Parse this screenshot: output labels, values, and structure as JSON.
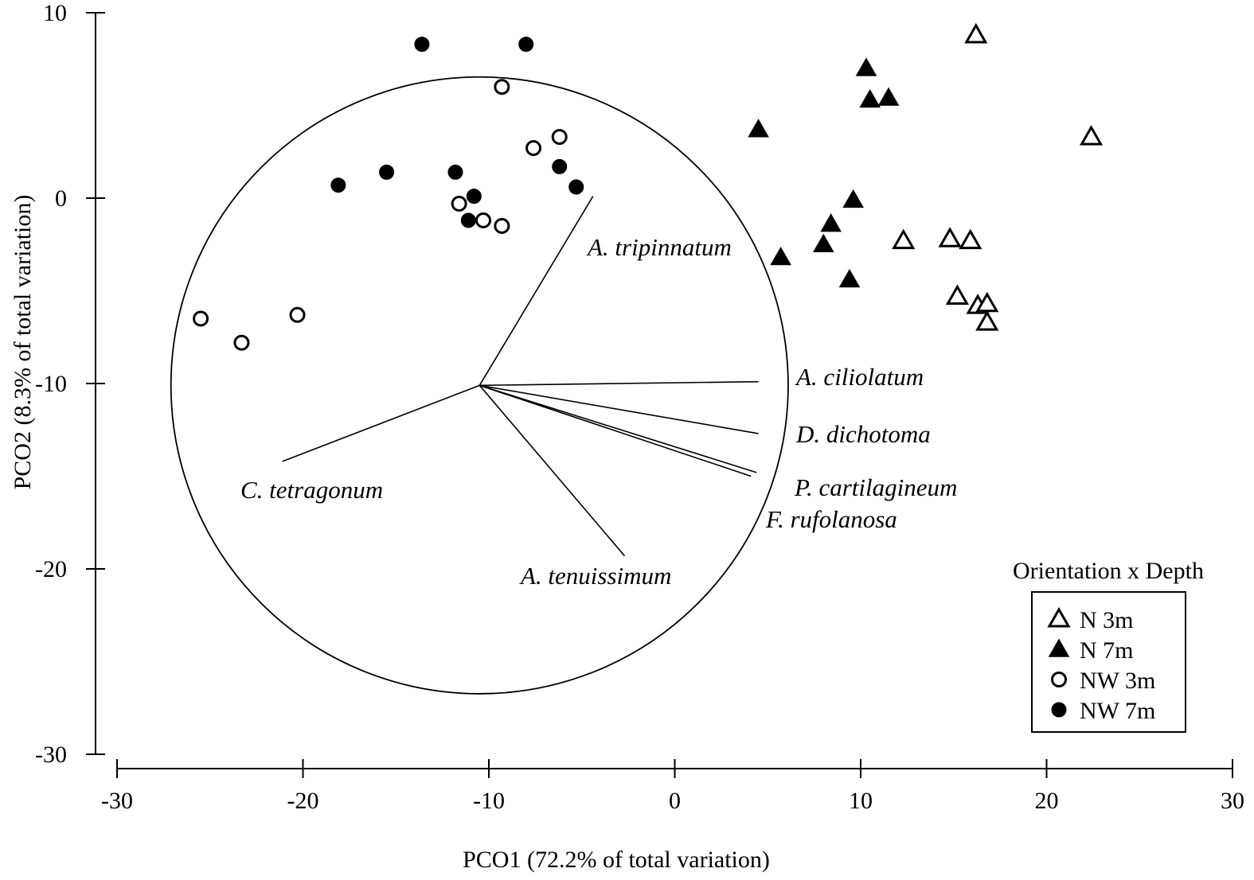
{
  "chart_data": {
    "type": "scatter",
    "xlabel": "PCO1 (72.2% of total variation)",
    "ylabel": "PCO2 (8.3% of total variation)",
    "xlim": [
      -30,
      30
    ],
    "ylim": [
      -30,
      10
    ],
    "xticks": [
      -30,
      -20,
      -10,
      0,
      10,
      20,
      30
    ],
    "yticks": [
      10,
      0,
      -10,
      -20,
      -30
    ],
    "xtick_labels": [
      "-30",
      "-20",
      "-10",
      "0",
      "10",
      "20",
      "30"
    ],
    "ytick_labels": [
      "10",
      "0",
      "-10",
      "-20",
      "-30"
    ],
    "grid": false,
    "legend": {
      "title": "Orientation x Depth",
      "position": "bottom-right"
    },
    "series": [
      {
        "name": "N 3m",
        "marker": "triangle-open",
        "points": [
          [
            16.2,
            8.8
          ],
          [
            22.4,
            3.3
          ],
          [
            12.3,
            -2.3
          ],
          [
            14.8,
            -2.2
          ],
          [
            15.9,
            -2.3
          ],
          [
            15.2,
            -5.3
          ],
          [
            16.3,
            -5.8
          ],
          [
            16.8,
            -5.7
          ],
          [
            16.8,
            -6.7
          ]
        ]
      },
      {
        "name": "N 7m",
        "marker": "triangle-filled",
        "points": [
          [
            10.3,
            7.0
          ],
          [
            10.5,
            5.3
          ],
          [
            11.5,
            5.4
          ],
          [
            4.5,
            3.7
          ],
          [
            9.6,
            -0.1
          ],
          [
            8.4,
            -1.4
          ],
          [
            8.0,
            -2.5
          ],
          [
            5.7,
            -3.2
          ],
          [
            9.4,
            -4.4
          ]
        ]
      },
      {
        "name": "NW 3m",
        "marker": "circle-open",
        "points": [
          [
            -9.3,
            6.0
          ],
          [
            -6.2,
            3.3
          ],
          [
            -7.6,
            2.7
          ],
          [
            -11.6,
            -0.3
          ],
          [
            -10.3,
            -1.2
          ],
          [
            -9.3,
            -1.5
          ],
          [
            -25.5,
            -6.5
          ],
          [
            -23.3,
            -7.8
          ],
          [
            -20.3,
            -6.3
          ]
        ]
      },
      {
        "name": "NW 7m",
        "marker": "circle-filled",
        "points": [
          [
            -13.6,
            8.3
          ],
          [
            -8.0,
            8.3
          ],
          [
            -18.1,
            0.7
          ],
          [
            -15.5,
            1.4
          ],
          [
            -11.8,
            1.4
          ],
          [
            -10.8,
            0.1
          ],
          [
            -11.1,
            -1.2
          ],
          [
            -6.2,
            1.7
          ],
          [
            -5.3,
            0.6
          ]
        ]
      }
    ],
    "correlation_circle": {
      "center": [
        -10.5,
        -10.1
      ],
      "radius": 16.6
    },
    "vectors": [
      {
        "label": "A. tripinnatum",
        "end": [
          -4.4,
          0.1
        ]
      },
      {
        "label": "A. ciliolatum",
        "end": [
          4.5,
          -9.9
        ]
      },
      {
        "label": "D. dichotoma",
        "end": [
          4.5,
          -12.7
        ]
      },
      {
        "label": "P. cartilagineum",
        "end": [
          4.4,
          -14.8
        ]
      },
      {
        "label": "F. rufolanosa",
        "end": [
          4.1,
          -15.0
        ]
      },
      {
        "label": "C. tetragonum",
        "end": [
          -21.1,
          -14.2
        ]
      },
      {
        "label": "A. tenuissimum",
        "end": [
          -2.7,
          -19.3
        ]
      }
    ]
  }
}
